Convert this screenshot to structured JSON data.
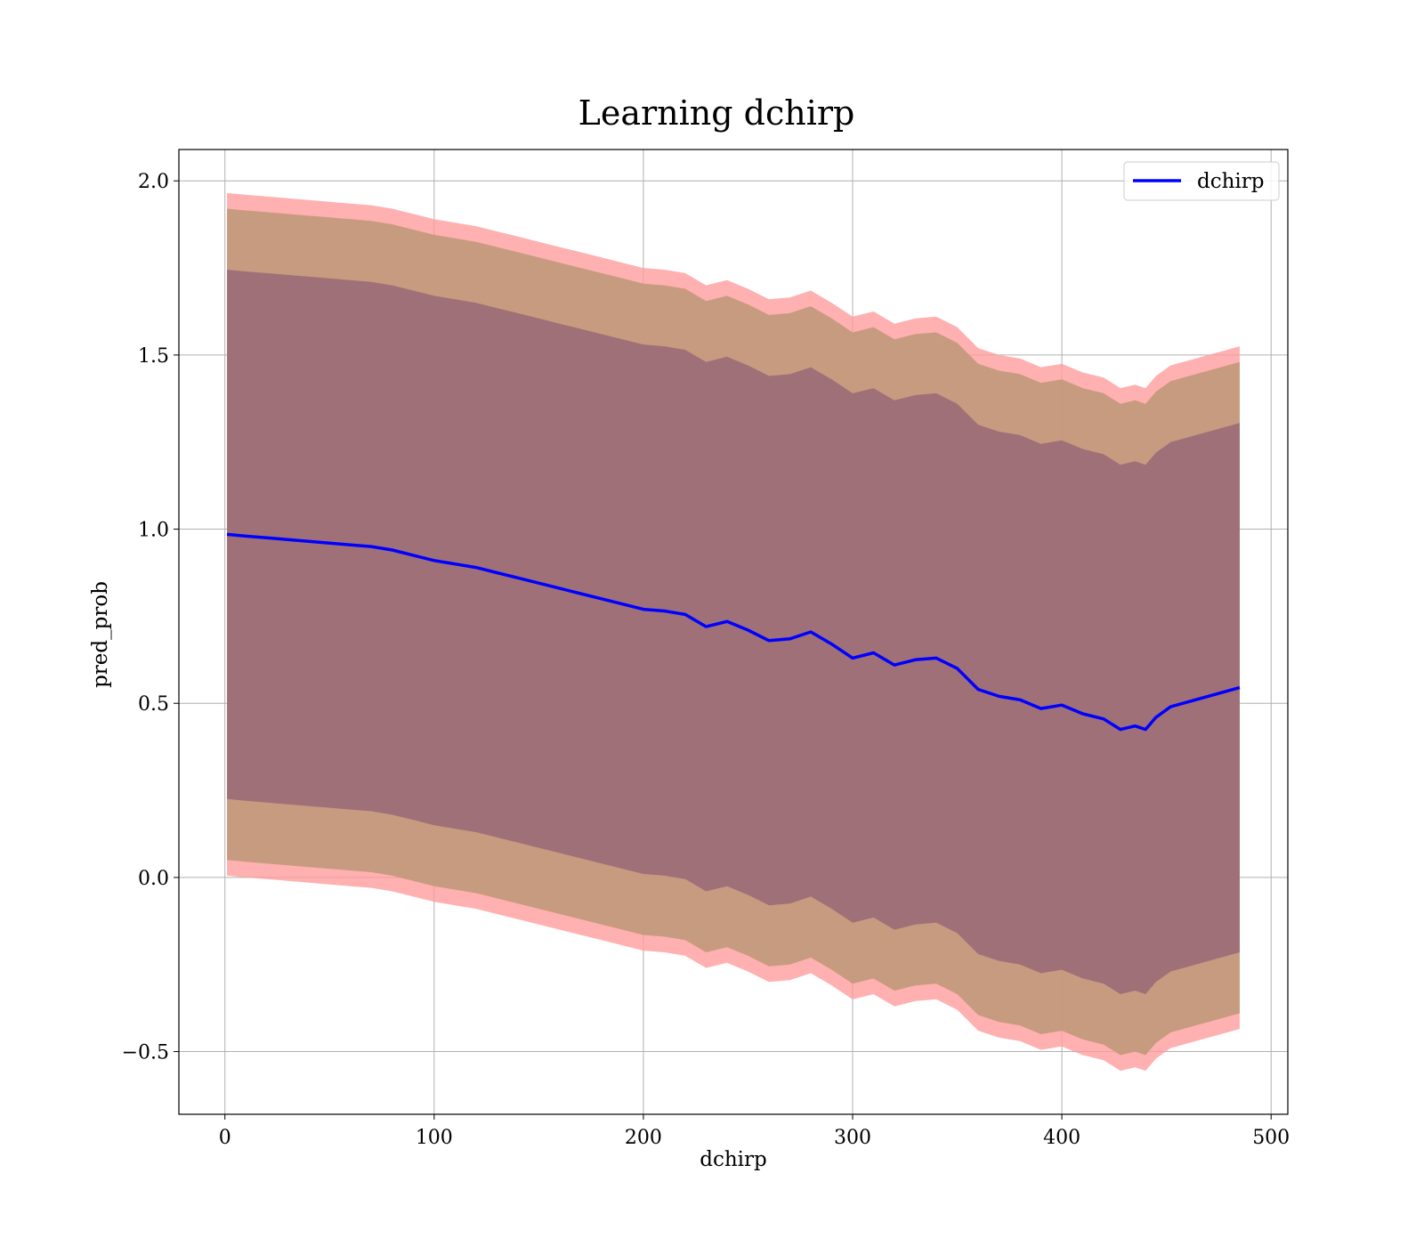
{
  "chart_data": {
    "type": "line",
    "title": "Learning dchirp",
    "xlabel": "dchirp",
    "ylabel": "pred_prob",
    "xlim": [
      -22,
      508
    ],
    "ylim": [
      -0.68,
      2.09
    ],
    "xticks": [
      0,
      100,
      200,
      300,
      400,
      500
    ],
    "xtick_labels": [
      "0",
      "100",
      "200",
      "300",
      "400",
      "500"
    ],
    "yticks": [
      -0.5,
      0.0,
      0.5,
      1.0,
      1.5,
      2.0
    ],
    "ytick_labels": [
      "−0.5",
      "0.0",
      "0.5",
      "1.0",
      "1.5",
      "2.0"
    ],
    "grid": true,
    "legend": {
      "position": "upper right",
      "entries": [
        "dchirp"
      ]
    },
    "series_color": "#0000ff",
    "band_colors": {
      "outer": "#ff9a9a",
      "middle": "#c49a7c",
      "inner": "#a07078"
    },
    "series": [
      {
        "name": "dchirp",
        "x": [
          1,
          10,
          20,
          30,
          40,
          50,
          60,
          70,
          80,
          90,
          100,
          110,
          120,
          130,
          140,
          150,
          160,
          170,
          180,
          190,
          200,
          210,
          220,
          230,
          240,
          250,
          260,
          270,
          280,
          290,
          300,
          310,
          320,
          330,
          340,
          350,
          360,
          370,
          380,
          390,
          400,
          410,
          420,
          428,
          435,
          440,
          445,
          452,
          485
        ],
        "y": [
          0.985,
          0.98,
          0.975,
          0.97,
          0.965,
          0.96,
          0.955,
          0.95,
          0.94,
          0.925,
          0.91,
          0.9,
          0.89,
          0.875,
          0.86,
          0.845,
          0.83,
          0.815,
          0.8,
          0.785,
          0.77,
          0.765,
          0.755,
          0.72,
          0.735,
          0.71,
          0.68,
          0.685,
          0.705,
          0.67,
          0.63,
          0.645,
          0.61,
          0.625,
          0.63,
          0.6,
          0.54,
          0.52,
          0.51,
          0.485,
          0.495,
          0.47,
          0.455,
          0.425,
          0.435,
          0.425,
          0.46,
          0.49,
          0.545
        ]
      }
    ],
    "bands": [
      {
        "name": "outer",
        "half_width": 0.98
      },
      {
        "name": "middle",
        "half_width": 0.935
      },
      {
        "name": "inner",
        "half_width": 0.76
      }
    ]
  }
}
